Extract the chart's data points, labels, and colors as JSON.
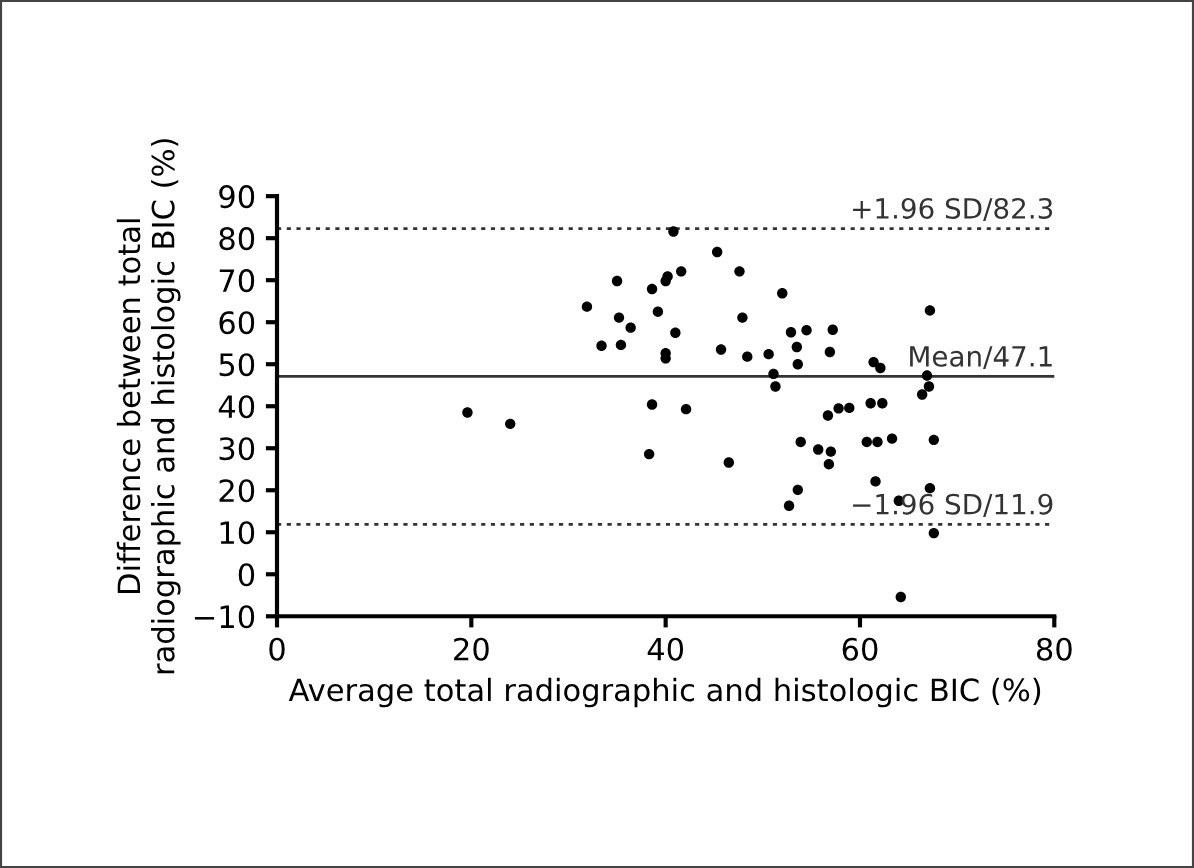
{
  "chart_data": {
    "type": "scatter",
    "xlabel": "Average total radiographic and histologic BIC (%)",
    "ylabel": "Difference between total\nradiographic and histologic BIC (%)",
    "x": [
      19.6,
      24.0,
      31.9,
      35.0,
      35.2,
      36.4,
      33.4,
      35.4,
      38.6,
      39.2,
      38.6,
      38.3,
      40.8,
      40.0,
      40.2,
      41.6,
      41.0,
      40.0,
      40.0,
      42.1,
      45.3,
      47.6,
      45.7,
      47.9,
      46.5,
      48.4,
      50.6,
      52.0,
      51.1,
      51.3,
      52.9,
      54.5,
      53.5,
      53.6,
      57.2,
      56.9,
      53.9,
      52.7,
      53.6,
      55.7,
      57.0,
      56.8,
      56.7,
      57.8,
      58.9,
      61.1,
      62.3,
      60.7,
      61.8,
      63.3,
      61.6,
      64.0,
      61.4,
      62.1,
      64.2,
      67.2,
      66.9,
      67.1,
      66.4,
      67.6,
      67.2,
      67.6
    ],
    "values": [
      38.5,
      35.8,
      63.7,
      69.8,
      61.1,
      58.7,
      54.4,
      54.6,
      67.9,
      62.5,
      40.4,
      28.6,
      81.6,
      69.8,
      70.9,
      72.1,
      57.5,
      52.6,
      51.4,
      39.3,
      76.7,
      72.1,
      53.5,
      61.1,
      26.6,
      51.8,
      52.4,
      66.9,
      47.7,
      44.7,
      57.6,
      58.1,
      54.1,
      50.0,
      58.2,
      52.9,
      31.5,
      16.3,
      20.1,
      29.7,
      29.2,
      26.2,
      37.8,
      39.5,
      39.6,
      40.7,
      40.7,
      31.5,
      31.5,
      32.3,
      22.1,
      17.5,
      50.5,
      49.1,
      -5.4,
      62.8,
      47.3,
      44.7,
      42.8,
      32.0,
      20.5,
      9.8
    ],
    "color": "#000000",
    "marker": "circle",
    "xlim": [
      0,
      80
    ],
    "xticks": [
      0,
      20,
      40,
      60,
      80
    ],
    "ylim": [
      -10,
      90
    ],
    "yticks": [
      -10,
      0,
      10,
      20,
      30,
      40,
      50,
      60,
      70,
      80,
      90
    ],
    "ref_lines": [
      {
        "axis": "y",
        "value": 82.3,
        "label": "+1.96 SD/82.3",
        "line_style": "dotted"
      },
      {
        "axis": "y",
        "value": 47.1,
        "label": "Mean/47.1",
        "line_style": "solid"
      },
      {
        "axis": "y",
        "value": 11.9,
        "label": "−1.96 SD/11.9",
        "line_style": "dotted"
      }
    ],
    "grid": false,
    "legend": false
  }
}
